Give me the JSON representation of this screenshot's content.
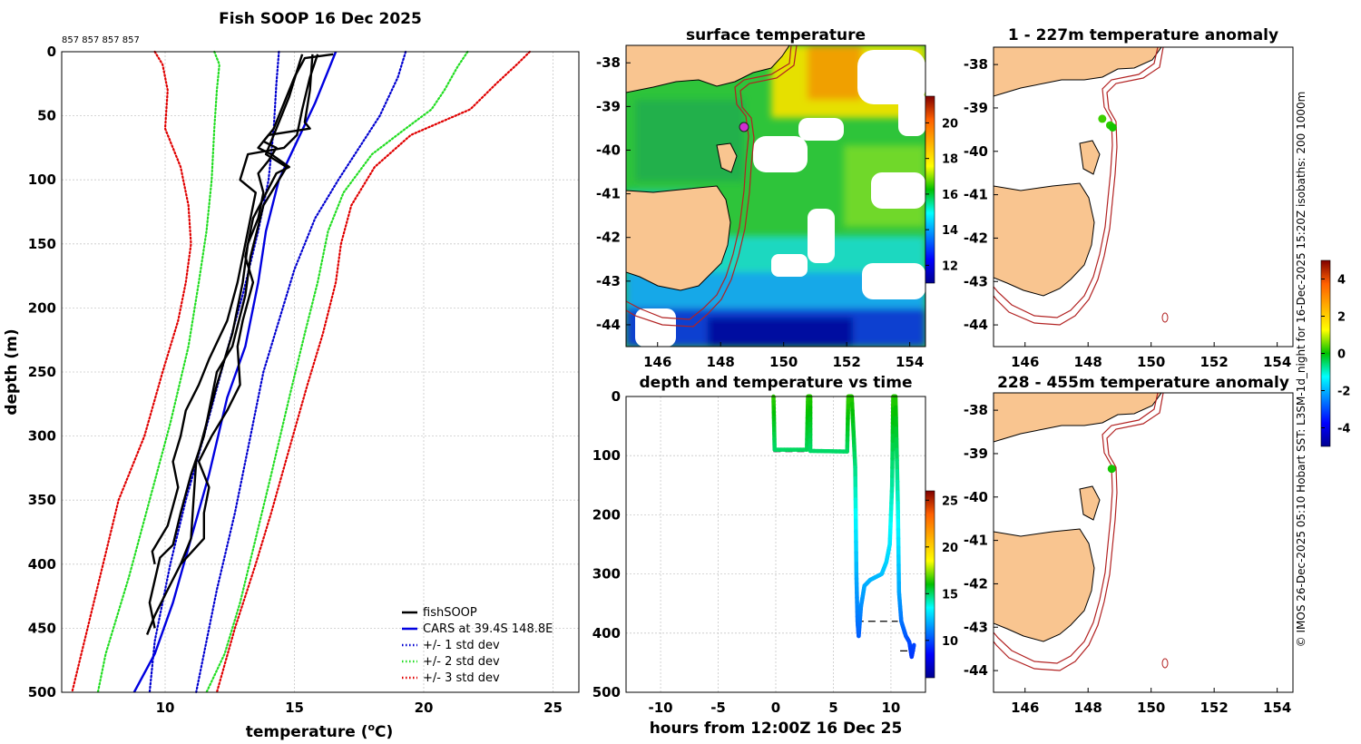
{
  "colors": {
    "land": "#f9c590",
    "coast": "#000000",
    "isobath": "#b22222",
    "fishsoop": "#000000",
    "cars": "#0000e0",
    "sd1": "#0000d0",
    "sd2": "#22dd22",
    "sd3": "#e00000",
    "grid": "#c8c8c8",
    "anomaly_marker": "#1fc44a",
    "ship_marker": "#d030d0"
  },
  "credit": "© IMOS 26-Dec-2025 05:10 Hobart SST: L3SM-1d_night for 16-Dec-2025 15:20Z isobaths: 200  1000m",
  "chart_data": [
    {
      "id": "profile",
      "type": "line",
      "title": "Fish SOOP 16 Dec 2025",
      "subtitle_ids": "857 857 857 857",
      "xlabel": "temperature (°C)",
      "xlabel_main": "temperature (",
      "xlabel_sup": "o",
      "xlabel_tail": "C)",
      "ylabel": "depth (m)",
      "xlim": [
        6,
        26
      ],
      "ylim": [
        0,
        500
      ],
      "xticks": [
        10,
        15,
        20,
        25
      ],
      "yticks": [
        0,
        50,
        100,
        150,
        200,
        250,
        300,
        350,
        400,
        450,
        500
      ],
      "legend": [
        {
          "label": "fishSOOP",
          "key": "fishsoop",
          "style": "solid"
        },
        {
          "label": "CARS at 39.4S 148.8E",
          "key": "cars",
          "style": "solid"
        },
        {
          "label": "+/- 1 std dev",
          "key": "sd1",
          "style": "dotted"
        },
        {
          "label": "+/- 2 std dev",
          "key": "sd2",
          "style": "dotted"
        },
        {
          "label": "+/- 3 std dev",
          "key": "sd3",
          "style": "dotted"
        }
      ],
      "cars_mean": [
        [
          16.6,
          0
        ],
        [
          16.3,
          15
        ],
        [
          15.8,
          40
        ],
        [
          15.1,
          70
        ],
        [
          14.4,
          100
        ],
        [
          13.9,
          140
        ],
        [
          13.6,
          180
        ],
        [
          13.1,
          230
        ],
        [
          12.4,
          270
        ],
        [
          11.7,
          330
        ],
        [
          11.0,
          380
        ],
        [
          10.3,
          430
        ],
        [
          9.6,
          470
        ],
        [
          8.8,
          500
        ]
      ],
      "std_devs": [
        {
          "key": "sd1",
          "side": "minus",
          "points": [
            [
              14.4,
              0
            ],
            [
              14.3,
              25
            ],
            [
              14.2,
              60
            ],
            [
              14.0,
              100
            ],
            [
              13.6,
              140
            ],
            [
              13.0,
              190
            ],
            [
              12.3,
              240
            ],
            [
              11.5,
              300
            ],
            [
              10.8,
              350
            ],
            [
              10.2,
              400
            ],
            [
              9.6,
              460
            ],
            [
              9.4,
              500
            ]
          ]
        },
        {
          "key": "sd1",
          "side": "plus",
          "points": [
            [
              19.3,
              0
            ],
            [
              19.0,
              20
            ],
            [
              18.3,
              50
            ],
            [
              16.7,
              100
            ],
            [
              15.8,
              130
            ],
            [
              15.0,
              170
            ],
            [
              14.4,
              210
            ],
            [
              13.8,
              250
            ],
            [
              13.3,
              300
            ],
            [
              12.7,
              360
            ],
            [
              12.0,
              420
            ],
            [
              11.2,
              500
            ]
          ]
        },
        {
          "key": "sd2",
          "side": "minus",
          "points": [
            [
              11.9,
              0
            ],
            [
              12.1,
              10
            ],
            [
              12.0,
              30
            ],
            [
              11.9,
              60
            ],
            [
              11.8,
              100
            ],
            [
              11.6,
              140
            ],
            [
              11.3,
              180
            ],
            [
              10.9,
              230
            ],
            [
              10.2,
              290
            ],
            [
              9.4,
              350
            ],
            [
              8.6,
              410
            ],
            [
              7.7,
              470
            ],
            [
              7.4,
              500
            ]
          ]
        },
        {
          "key": "sd2",
          "side": "plus",
          "points": [
            [
              21.7,
              0
            ],
            [
              21.3,
              12
            ],
            [
              20.8,
              30
            ],
            [
              20.3,
              45
            ],
            [
              19.3,
              60
            ],
            [
              18.0,
              80
            ],
            [
              16.9,
              110
            ],
            [
              16.3,
              140
            ],
            [
              15.9,
              180
            ],
            [
              15.4,
              220
            ],
            [
              14.8,
              270
            ],
            [
              14.1,
              330
            ],
            [
              13.5,
              380
            ],
            [
              12.9,
              430
            ],
            [
              12.3,
              470
            ],
            [
              11.6,
              500
            ]
          ]
        },
        {
          "key": "sd3",
          "side": "minus",
          "points": [
            [
              9.6,
              0
            ],
            [
              9.9,
              10
            ],
            [
              10.1,
              30
            ],
            [
              10.0,
              60
            ],
            [
              10.6,
              90
            ],
            [
              10.9,
              120
            ],
            [
              11.0,
              150
            ],
            [
              10.8,
              180
            ],
            [
              10.5,
              210
            ],
            [
              9.9,
              250
            ],
            [
              9.2,
              300
            ],
            [
              8.2,
              350
            ],
            [
              7.6,
              400
            ],
            [
              7.0,
              450
            ],
            [
              6.4,
              500
            ]
          ]
        },
        {
          "key": "sd3",
          "side": "plus",
          "points": [
            [
              24.1,
              0
            ],
            [
              23.6,
              10
            ],
            [
              22.8,
              25
            ],
            [
              21.8,
              45
            ],
            [
              19.5,
              65
            ],
            [
              18.1,
              90
            ],
            [
              17.2,
              120
            ],
            [
              16.8,
              150
            ],
            [
              16.6,
              180
            ],
            [
              16.1,
              220
            ],
            [
              15.5,
              260
            ],
            [
              14.8,
              310
            ],
            [
              14.1,
              360
            ],
            [
              13.5,
              400
            ],
            [
              12.7,
              450
            ],
            [
              12.0,
              500
            ]
          ]
        }
      ],
      "fishsoop_casts": [
        [
          [
            16.5,
            2
          ],
          [
            15.4,
            5
          ],
          [
            15.0,
            20
          ],
          [
            14.6,
            40
          ],
          [
            14.2,
            60
          ],
          [
            13.8,
            70
          ],
          [
            14.3,
            75
          ],
          [
            14.0,
            85
          ],
          [
            13.6,
            95
          ],
          [
            13.8,
            110
          ],
          [
            13.6,
            130
          ],
          [
            13.2,
            150
          ],
          [
            13.0,
            180
          ],
          [
            12.8,
            200
          ],
          [
            12.6,
            220
          ],
          [
            12.3,
            240
          ],
          [
            12.0,
            260
          ],
          [
            11.6,
            290
          ],
          [
            11.2,
            320
          ],
          [
            11.1,
            350
          ],
          [
            11.0,
            380
          ],
          [
            10.6,
            400
          ],
          [
            10.1,
            420
          ],
          [
            9.6,
            440
          ],
          [
            9.3,
            455
          ]
        ],
        [
          [
            15.3,
            2
          ],
          [
            15.1,
            15
          ],
          [
            14.8,
            35
          ],
          [
            14.3,
            60
          ],
          [
            13.9,
            80
          ],
          [
            14.7,
            90
          ],
          [
            14.4,
            100
          ],
          [
            13.8,
            120
          ],
          [
            13.3,
            160
          ],
          [
            13.1,
            190
          ],
          [
            12.6,
            230
          ],
          [
            12.0,
            250
          ],
          [
            11.8,
            270
          ],
          [
            11.5,
            300
          ],
          [
            11.0,
            330
          ],
          [
            10.6,
            360
          ],
          [
            10.3,
            385
          ],
          [
            9.8,
            395
          ],
          [
            9.4,
            430
          ],
          [
            9.6,
            450
          ]
        ],
        [
          [
            15.9,
            2
          ],
          [
            15.6,
            20
          ],
          [
            15.3,
            45
          ],
          [
            15.1,
            65
          ],
          [
            14.6,
            75
          ],
          [
            13.2,
            80
          ],
          [
            12.9,
            100
          ],
          [
            13.5,
            110
          ],
          [
            13.2,
            140
          ],
          [
            12.8,
            180
          ],
          [
            12.4,
            210
          ],
          [
            11.7,
            240
          ],
          [
            11.3,
            260
          ],
          [
            10.8,
            280
          ],
          [
            10.6,
            300
          ],
          [
            10.3,
            320
          ],
          [
            10.5,
            340
          ],
          [
            10.1,
            370
          ],
          [
            9.5,
            390
          ],
          [
            9.6,
            400
          ]
        ],
        [
          [
            15.7,
            2
          ],
          [
            15.6,
            30
          ],
          [
            15.4,
            55
          ],
          [
            15.6,
            60
          ],
          [
            14.0,
            65
          ],
          [
            13.6,
            75
          ],
          [
            14.1,
            80
          ],
          [
            14.8,
            90
          ],
          [
            14.3,
            95
          ],
          [
            13.4,
            130
          ],
          [
            13.1,
            160
          ],
          [
            13.4,
            180
          ],
          [
            13.0,
            210
          ],
          [
            12.8,
            230
          ],
          [
            12.9,
            260
          ],
          [
            12.4,
            280
          ],
          [
            11.8,
            300
          ],
          [
            11.3,
            320
          ],
          [
            11.7,
            340
          ],
          [
            11.5,
            360
          ],
          [
            11.5,
            380
          ],
          [
            10.6,
            400
          ]
        ]
      ]
    },
    {
      "id": "sst",
      "type": "heatmap",
      "title": "surface temperature",
      "xlim": [
        145,
        154.5
      ],
      "ylim": [
        -44.5,
        -37.6
      ],
      "xticks": [
        146,
        148,
        150,
        152,
        154
      ],
      "yticks": [
        -38,
        -39,
        -40,
        -41,
        -42,
        -43,
        -44
      ],
      "colorbar_ticks": [
        20,
        18,
        16,
        14,
        12
      ],
      "colorbar_range": [
        11,
        21.5
      ],
      "ship_position": [
        148.8,
        -39.35
      ]
    },
    {
      "id": "time",
      "type": "line",
      "title": "depth and temperature vs time",
      "xlabel": "hours from 12:00Z 16 Dec 25",
      "xlim": [
        -13,
        13
      ],
      "ylim": [
        0,
        500
      ],
      "xticks": [
        -10,
        -5,
        0,
        5,
        10
      ],
      "yticks": [
        0,
        100,
        200,
        300,
        400,
        500
      ],
      "colorbar_ticks": [
        25,
        20,
        15,
        10
      ],
      "colorbar_range": [
        6,
        26
      ],
      "track": [
        [
          -0.2,
          0,
          16.5
        ],
        [
          -0.1,
          90,
          15.0
        ],
        [
          2.7,
          90,
          15.1
        ],
        [
          2.8,
          0,
          16.4
        ],
        [
          3.0,
          0,
          16.4
        ],
        [
          3.0,
          92,
          15.0
        ],
        [
          6.2,
          93,
          15.0
        ],
        [
          6.3,
          0,
          16.5
        ],
        [
          6.6,
          0,
          16.4
        ],
        [
          6.9,
          120,
          14.8
        ],
        [
          7.0,
          300,
          12.0
        ],
        [
          7.1,
          380,
          10.8
        ],
        [
          7.2,
          405,
          10.3
        ],
        [
          7.4,
          355,
          11.2
        ],
        [
          7.7,
          320,
          11.8
        ],
        [
          8.2,
          310,
          12.0
        ],
        [
          8.7,
          305,
          12.1
        ],
        [
          9.2,
          300,
          12.2
        ],
        [
          9.6,
          280,
          12.6
        ],
        [
          9.9,
          250,
          13.0
        ],
        [
          10.1,
          150,
          14.4
        ],
        [
          10.2,
          0,
          16.4
        ],
        [
          10.4,
          0,
          16.4
        ],
        [
          10.6,
          180,
          14.0
        ],
        [
          10.7,
          330,
          11.8
        ],
        [
          10.9,
          380,
          10.8
        ],
        [
          11.3,
          405,
          10.3
        ],
        [
          11.6,
          415,
          10.0
        ],
        [
          11.8,
          440,
          9.5
        ],
        [
          12.0,
          420,
          9.8
        ]
      ],
      "bottom_dashes": [
        [
          [
            -0.2,
            93
          ],
          [
            5.5,
            93
          ]
        ],
        [
          [
            7.0,
            380
          ],
          [
            10.6,
            380
          ]
        ],
        [
          [
            10.8,
            430
          ],
          [
            12.1,
            430
          ]
        ]
      ]
    },
    {
      "id": "anom_upper",
      "type": "scatter",
      "title": "1 - 227m temperature anomaly",
      "xlim": [
        145,
        154.5
      ],
      "ylim": [
        -44.5,
        -37.6
      ],
      "xticks": [
        146,
        148,
        150,
        152,
        154
      ],
      "yticks": [
        -38,
        -39,
        -40,
        -41,
        -42,
        -43,
        -44
      ],
      "points": [
        [
          148.45,
          -39.25,
          0.3
        ],
        [
          148.7,
          -39.4,
          0.2
        ],
        [
          148.78,
          -39.45,
          0.1
        ]
      ]
    },
    {
      "id": "anom_lower",
      "type": "scatter",
      "title": "228 - 455m temperature anomaly",
      "xlim": [
        145,
        154.5
      ],
      "ylim": [
        -44.5,
        -37.6
      ],
      "xticks": [
        146,
        148,
        150,
        152,
        154
      ],
      "yticks": [
        -38,
        -39,
        -40,
        -41,
        -42,
        -43,
        -44
      ],
      "points": [
        [
          148.75,
          -39.35,
          0.1
        ]
      ],
      "colorbar_ticks": [
        4,
        2,
        0,
        -2,
        -4
      ],
      "colorbar_range": [
        -5,
        5
      ]
    }
  ]
}
